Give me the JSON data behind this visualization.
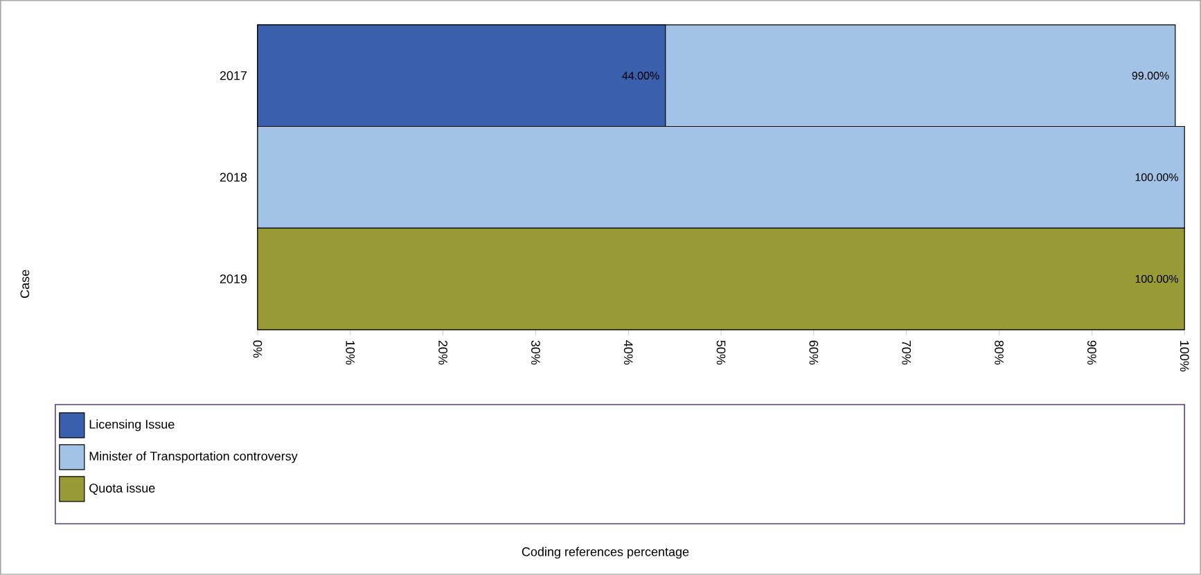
{
  "chart_data": {
    "type": "bar",
    "orientation": "horizontal",
    "categories": [
      "2017",
      "2018",
      "2019"
    ],
    "series": [
      {
        "name": "Licensing Issue",
        "color": "#3a5fad",
        "values": [
          44,
          null,
          null
        ],
        "value_labels": [
          "44.00%",
          null,
          null
        ]
      },
      {
        "name": "Minister of Transportation controversy",
        "color": "#a3c3e6",
        "values": [
          99,
          100,
          null
        ],
        "value_labels": [
          "99.00%",
          "100.00%",
          null
        ]
      },
      {
        "name": "Quota issue",
        "color": "#989a35",
        "values": [
          null,
          null,
          100
        ],
        "value_labels": [
          null,
          null,
          "100.00%"
        ]
      }
    ],
    "xlim": [
      0,
      100
    ],
    "xticks": [
      {
        "value": 0,
        "label": "0%"
      },
      {
        "value": 10,
        "label": "10%"
      },
      {
        "value": 20,
        "label": "20%"
      },
      {
        "value": 30,
        "label": "30%"
      },
      {
        "value": 40,
        "label": "40%"
      },
      {
        "value": 50,
        "label": "50%"
      },
      {
        "value": 60,
        "label": "60%"
      },
      {
        "value": 70,
        "label": "70%"
      },
      {
        "value": 80,
        "label": "80%"
      },
      {
        "value": 90,
        "label": "90%"
      },
      {
        "value": 100,
        "label": "100%"
      }
    ],
    "annotations": [
      "Case",
      "Coding references percentage"
    ],
    "legend": "bottom"
  }
}
